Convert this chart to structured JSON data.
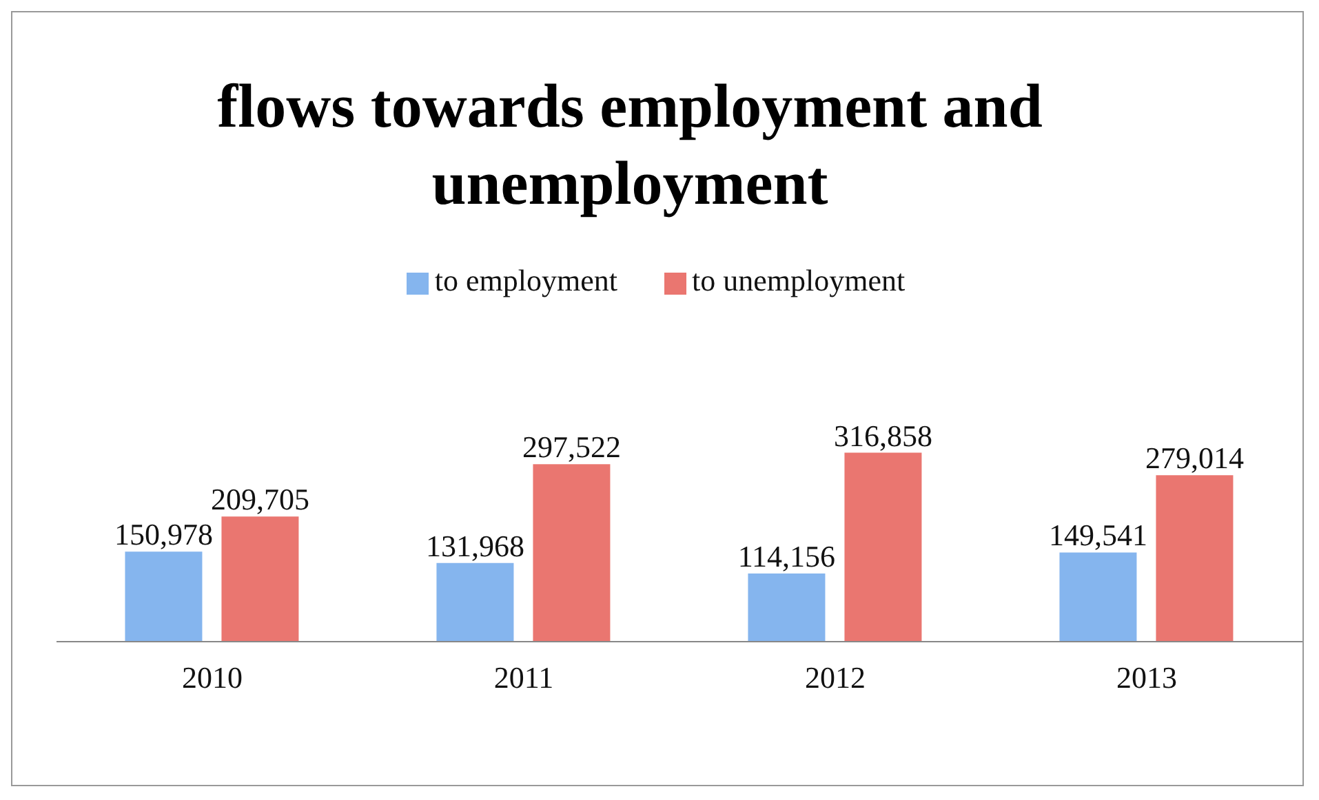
{
  "chart_data": {
    "type": "bar",
    "title": "flows towards employment and unemployment",
    "categories": [
      "2010",
      "2011",
      "2012",
      "2013"
    ],
    "series": [
      {
        "name": "to employment",
        "color": "#85b5ee",
        "values": [
          150978,
          131968,
          114156,
          149541
        ],
        "value_labels": [
          "150,978",
          "131,968",
          "114,156",
          "149,541"
        ]
      },
      {
        "name": "to unemployment",
        "color": "#ea7670",
        "values": [
          209705,
          297522,
          316858,
          279014
        ],
        "value_labels": [
          "209,705",
          "297,522",
          "316,858",
          "279,014"
        ]
      }
    ],
    "legend": "top"
  }
}
